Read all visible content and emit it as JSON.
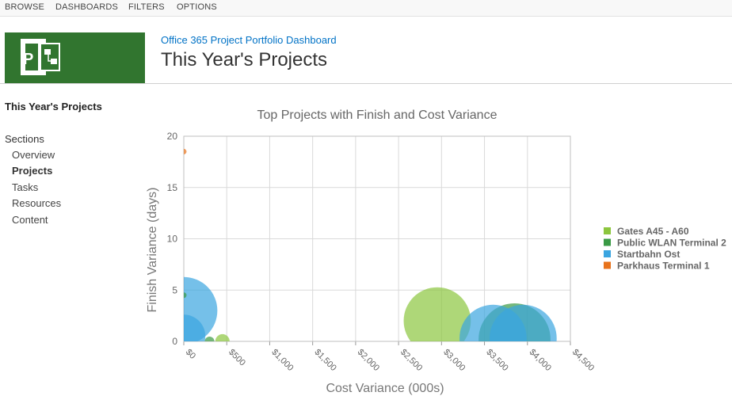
{
  "ribbon": {
    "tabs": [
      "BROWSE",
      "DASHBOARDS",
      "FILTERS",
      "OPTIONS"
    ]
  },
  "header": {
    "subtitle": "Office 365 Project Portfolio Dashboard",
    "title": "This Year's Projects",
    "logo_icon": "project-logo-icon",
    "brand_color": "#31752f"
  },
  "nav": {
    "title": "This Year's Projects",
    "section_label": "Sections",
    "items": [
      "Overview",
      "Projects",
      "Tasks",
      "Resources",
      "Content"
    ],
    "active": "Projects"
  },
  "chart_data": {
    "type": "scatter",
    "title": "Top Projects with Finish and Cost Variance",
    "xlabel": "Cost Variance (000s)",
    "ylabel": "Finish Variance (days)",
    "xlim": [
      0,
      4500
    ],
    "ylim": [
      0,
      20
    ],
    "x_ticks": [
      "$0",
      "$500",
      "$1,000",
      "$1,500",
      "$2,000",
      "$2,500",
      "$3,000",
      "$3,500",
      "$4,000",
      "$4,500"
    ],
    "y_ticks": [
      "0",
      "5",
      "10",
      "15",
      "20"
    ],
    "grid": true,
    "legend_position": "right",
    "series": [
      {
        "name": "Gates A45 - A60",
        "color": "#8cc63e",
        "points": [
          {
            "x": 2950,
            "y": 2,
            "size": 0.14
          },
          {
            "x": 450,
            "y": 0,
            "size": 0.03
          }
        ]
      },
      {
        "name": "Public WLAN Terminal 2",
        "color": "#3a9a45",
        "points": [
          {
            "x": 0,
            "y": 4.5,
            "size": 0.01
          },
          {
            "x": 3850,
            "y": 0.2,
            "size": 0.15
          },
          {
            "x": 300,
            "y": 0,
            "size": 0.02
          }
        ]
      },
      {
        "name": "Startbahn Ost",
        "color": "#3ba5e0",
        "points": [
          {
            "x": 0,
            "y": 3,
            "size": 0.14
          },
          {
            "x": 0,
            "y": 0.5,
            "size": 0.09
          },
          {
            "x": 3600,
            "y": 0.3,
            "size": 0.14
          },
          {
            "x": 3950,
            "y": 0.3,
            "size": 0.14
          }
        ]
      },
      {
        "name": "Parkhaus Terminal 1",
        "color": "#e8731c",
        "points": [
          {
            "x": 0,
            "y": 18.5,
            "size": 0.005
          }
        ]
      }
    ]
  }
}
